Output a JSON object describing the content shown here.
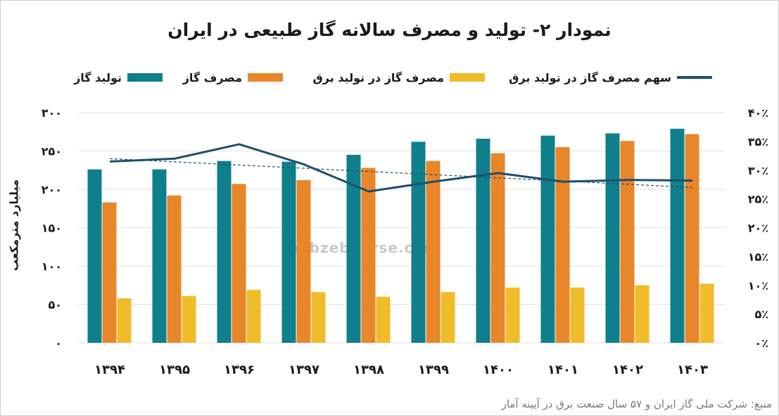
{
  "title": "نمودار ۲- تولید و مصرف سالانه گاز طبیعی در ایران",
  "source": "منبع: شرکت ملی گاز ایران و ۵۷ سال صنعت برق در آیینه آمار",
  "watermark": "nabzebourse.com",
  "colors": {
    "production": "#0f7f8c",
    "consumption": "#e8862a",
    "power": "#f0bc2a",
    "share_line": "#1f4e6d",
    "trend_line": "#1f4e6d"
  },
  "chart_data": {
    "type": "bar",
    "categories": [
      "۱۳۹۴",
      "۱۳۹۵",
      "۱۳۹۶",
      "۱۳۹۷",
      "۱۳۹۸",
      "۱۳۹۹",
      "۱۴۰۰",
      "۱۴۰۱",
      "۱۴۰۲",
      "۱۴۰۳"
    ],
    "series": [
      {
        "name": "تولید گاز",
        "values": [
          226,
          226,
          237,
          236,
          245,
          262,
          266,
          270,
          273,
          279
        ]
      },
      {
        "name": "مصرف گاز",
        "values": [
          183,
          192,
          207,
          212,
          228,
          237,
          247,
          255,
          263,
          272
        ]
      },
      {
        "name": "مصرف گاز در تولید برق",
        "values": [
          58,
          61,
          69,
          66,
          60,
          66,
          72,
          72,
          75,
          77
        ]
      }
    ],
    "line_series": {
      "name": "سهم مصرف گاز در تولید برق",
      "axis": "right",
      "values": [
        31.5,
        32.0,
        34.5,
        31.0,
        26.3,
        28.0,
        29.5,
        28.0,
        28.3,
        28.2
      ]
    },
    "trend_line": {
      "axis": "right",
      "start": 32.0,
      "end": 27.0
    },
    "ylabel": "میلیارد مترمکعب",
    "ylim": [
      0,
      300
    ],
    "y_ticks": [
      "۰",
      "۵۰",
      "۱۰۰",
      "۱۵۰",
      "۲۰۰",
      "۲۵۰",
      "۳۰۰"
    ],
    "y2lim": [
      0,
      40
    ],
    "y2_ticks": [
      "۰٪",
      "۵٪",
      "۱۰٪",
      "۱۵٪",
      "۲۰٪",
      "۲۵٪",
      "۳۰٪",
      "۳۵٪",
      "۴۰٪"
    ],
    "grid": true,
    "legend": "top"
  }
}
